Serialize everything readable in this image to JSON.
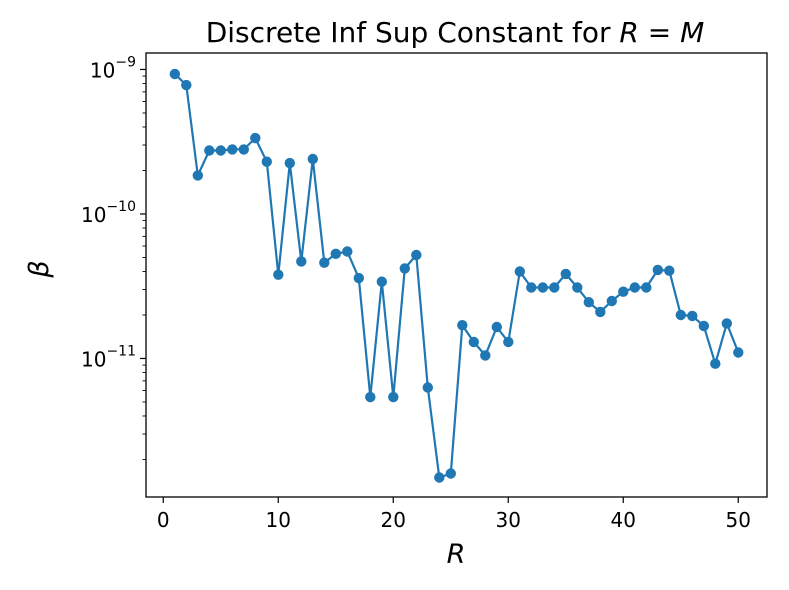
{
  "chart_data": {
    "type": "line",
    "title_prefix": "Discrete Inf Sup Constant for ",
    "title_math": "R = M",
    "xlabel": "R",
    "ylabel": "β",
    "xlim": [
      -1.5,
      52.5
    ],
    "ylim": [
      1.1e-12,
      1.3e-09
    ],
    "yscale": "log",
    "grid": false,
    "marker": "circle",
    "series_color": "#1f77b4",
    "xticks": [
      0,
      10,
      20,
      30,
      40,
      50
    ],
    "yticks": [
      {
        "value": 1e-09,
        "base": "10",
        "exp": "−9"
      },
      {
        "value": 1e-10,
        "base": "10",
        "exp": "−10"
      },
      {
        "value": 1e-11,
        "base": "10",
        "exp": "−11"
      }
    ],
    "series": [
      {
        "x": [
          1,
          2,
          3,
          4,
          5,
          6,
          7,
          8,
          9,
          10,
          11,
          12,
          13,
          14,
          15,
          16,
          17,
          18,
          19,
          20,
          21,
          22,
          23,
          24,
          25,
          26,
          27,
          28,
          29,
          30,
          31,
          32,
          33,
          34,
          35,
          36,
          37,
          38,
          39,
          40,
          41,
          42,
          43,
          44,
          45,
          46,
          47,
          48,
          49,
          50
        ],
        "values": [
          9.3e-10,
          7.8e-10,
          1.85e-10,
          2.75e-10,
          2.75e-10,
          2.8e-10,
          2.8e-10,
          3.35e-10,
          2.3e-10,
          3.8e-11,
          2.25e-10,
          4.7e-11,
          2.4e-10,
          4.6e-11,
          5.3e-11,
          5.5e-11,
          3.6e-11,
          5.4e-12,
          3.4e-11,
          5.4e-12,
          4.2e-11,
          5.2e-11,
          6.3e-12,
          1.5e-12,
          1.6e-12,
          1.7e-11,
          1.3e-11,
          1.05e-11,
          1.65e-11,
          1.3e-11,
          4e-11,
          3.1e-11,
          3.1e-11,
          3.1e-11,
          3.85e-11,
          3.1e-11,
          2.45e-11,
          2.1e-11,
          2.5e-11,
          2.9e-11,
          3.1e-11,
          3.1e-11,
          4.1e-11,
          4.05e-11,
          2e-11,
          1.97e-11,
          1.68e-11,
          9.2e-12,
          1.75e-11,
          1.1e-11
        ]
      }
    ]
  }
}
